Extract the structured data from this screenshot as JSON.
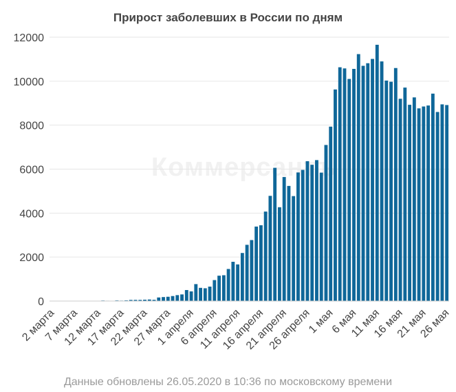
{
  "title": "Прирост заболевших в России по дням",
  "footnote": "Данные обновлены 26.05.2020 в 10:36 по московскому времени",
  "watermark": "Коммерсантъ",
  "colors": {
    "bar": "#0f6799",
    "grid": "#e6e6e6",
    "axis_text": "#444444",
    "title": "#444444",
    "footnote": "#9a9a9a"
  },
  "chart_data": {
    "type": "bar",
    "title": "Прирост заболевших в России по дням",
    "xlabel": "",
    "ylabel": "",
    "ylim": [
      0,
      12000
    ],
    "yticks": [
      0,
      2000,
      4000,
      6000,
      8000,
      10000,
      12000
    ],
    "grid": true,
    "x_tick_labels": [
      "2 марта",
      "7 марта",
      "12 марта",
      "17 марта",
      "22 марта",
      "27 марта",
      "1 апреля",
      "6 апреля",
      "11 апреля",
      "16 апреля",
      "21 апреля",
      "26 апреля",
      "1 мая",
      "6 мая",
      "11 мая",
      "16 мая",
      "21 мая",
      "26 мая"
    ],
    "x_tick_every": 5,
    "categories": [
      "2 марта",
      "3 марта",
      "4 марта",
      "5 марта",
      "6 марта",
      "7 марта",
      "8 марта",
      "9 марта",
      "10 марта",
      "11 марта",
      "12 марта",
      "13 марта",
      "14 марта",
      "15 марта",
      "16 марта",
      "17 марта",
      "18 марта",
      "19 марта",
      "20 марта",
      "21 марта",
      "22 марта",
      "23 марта",
      "24 марта",
      "25 марта",
      "26 марта",
      "27 марта",
      "28 марта",
      "29 марта",
      "30 марта",
      "31 марта",
      "1 апреля",
      "2 апреля",
      "3 апреля",
      "4 апреля",
      "5 апреля",
      "6 апреля",
      "7 апреля",
      "8 апреля",
      "9 апреля",
      "10 апреля",
      "11 апреля",
      "12 апреля",
      "13 апреля",
      "14 апреля",
      "15 апреля",
      "16 апреля",
      "17 апреля",
      "18 апреля",
      "19 апреля",
      "20 апреля",
      "21 апреля",
      "22 апреля",
      "23 апреля",
      "24 апреля",
      "25 апреля",
      "26 апреля",
      "27 апреля",
      "28 апреля",
      "29 апреля",
      "30 апреля",
      "1 мая",
      "2 мая",
      "3 мая",
      "4 мая",
      "5 мая",
      "6 мая",
      "7 мая",
      "8 мая",
      "9 мая",
      "10 мая",
      "11 мая",
      "12 мая",
      "13 мая",
      "14 мая",
      "15 мая",
      "16 мая",
      "17 мая",
      "18 мая",
      "19 мая",
      "20 мая",
      "21 мая",
      "22 мая",
      "23 мая",
      "24 мая",
      "25 мая",
      "26 мая"
    ],
    "values": [
      3,
      0,
      0,
      1,
      0,
      6,
      3,
      0,
      3,
      8,
      6,
      25,
      17,
      4,
      29,
      21,
      33,
      52,
      54,
      53,
      62,
      71,
      57,
      163,
      182,
      196,
      228,
      270,
      302,
      501,
      440,
      771,
      601,
      582,
      658,
      954,
      1154,
      1175,
      1459,
      1786,
      1667,
      2186,
      2558,
      2774,
      3388,
      3448,
      4070,
      4785,
      6060,
      4268,
      5642,
      5236,
      4774,
      5849,
      5966,
      6361,
      6198,
      6411,
      5841,
      7099,
      7933,
      9623,
      10633,
      10581,
      10102,
      10559,
      11231,
      10699,
      10817,
      11012,
      11656,
      10899,
      10028,
      9974,
      10598,
      9200,
      9709,
      8926,
      9263,
      8764,
      8849,
      8894,
      9434,
      8599,
      8946,
      8915
    ]
  }
}
